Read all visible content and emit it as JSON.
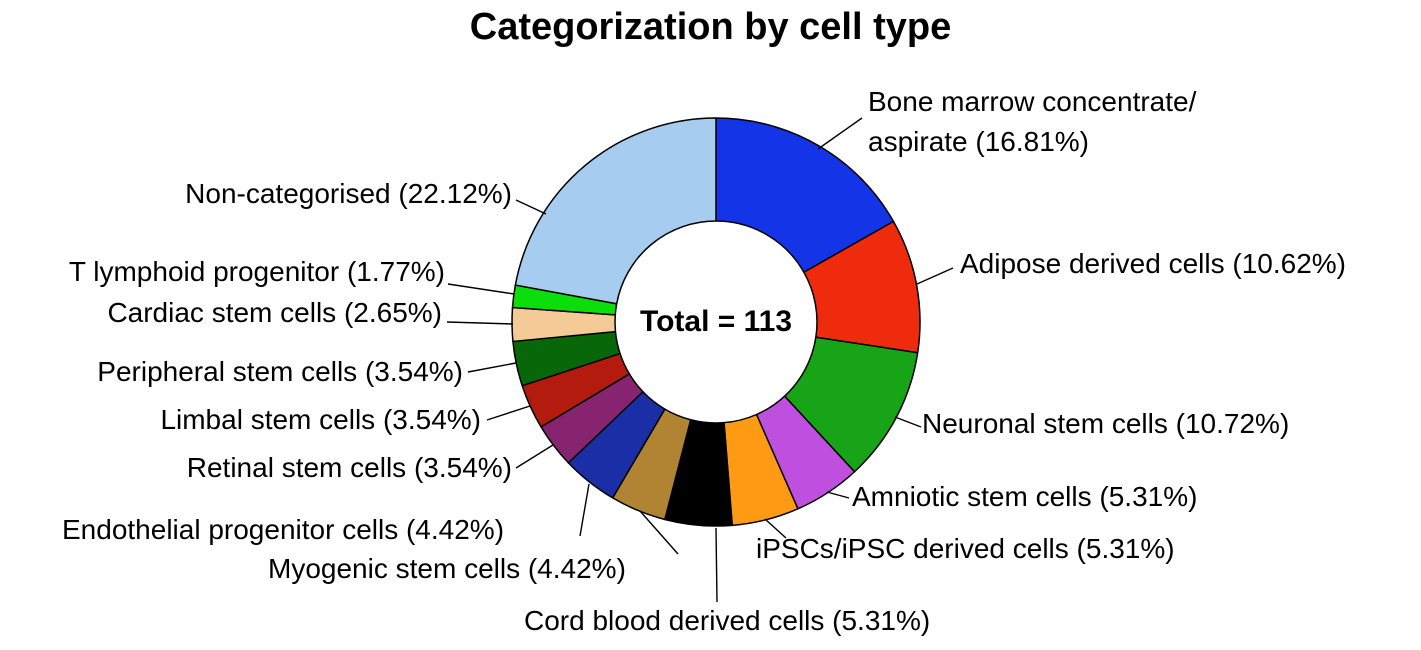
{
  "chart_data": {
    "type": "pie",
    "subtype": "donut",
    "title": "Categorization by cell type",
    "center_label": "Total = 113",
    "total": 113,
    "direction": "clockwise",
    "start_angle": "12-oclock",
    "legend_position": "callout-labels-with-leader-lines",
    "slices": [
      {
        "id": "bone-marrow-concentrate-aspirate",
        "label": "Bone marrow concentrate/aspirate",
        "pct": 16.81,
        "color": "#1434E8",
        "callout": "Bone marrow concentrate/\naspirate (16.81%)"
      },
      {
        "id": "adipose-derived-cells",
        "label": "Adipose derived cells",
        "pct": 10.62,
        "color": "#EE2B0C",
        "callout": "Adipose derived cells (10.62%)"
      },
      {
        "id": "neuronal-stem-cells",
        "label": "Neuronal stem cells",
        "pct": 10.72,
        "color": "#17A517",
        "callout": "Neuronal stem cells (10.72%)"
      },
      {
        "id": "amniotic-stem-cells",
        "label": "Amniotic stem cells",
        "pct": 5.31,
        "color": "#BF4FDF",
        "callout": "Amniotic stem cells (5.31%)"
      },
      {
        "id": "ipscs-ipsc-derived-cells",
        "label": "iPSCs/iPSC derived cells",
        "pct": 5.31,
        "color": "#FF9A15",
        "callout": "iPSCs/iPSC derived cells (5.31%)"
      },
      {
        "id": "cord-blood-derived-cells",
        "label": "Cord blood derived cells",
        "pct": 5.31,
        "color": "#000000",
        "callout": "Cord blood derived cells (5.31%)"
      },
      {
        "id": "myogenic-stem-cells",
        "label": "Myogenic stem cells",
        "pct": 4.42,
        "color": "#B08433",
        "callout": "Myogenic stem cells (4.42%)"
      },
      {
        "id": "endothelial-progenitor-cells",
        "label": "Endothelial progenitor cells",
        "pct": 4.42,
        "color": "#1A2FA6",
        "callout": "Endothelial progenitor cells (4.42%)"
      },
      {
        "id": "retinal-stem-cells",
        "label": "Retinal stem cells",
        "pct": 3.54,
        "color": "#87246F",
        "callout": "Retinal stem cells (3.54%)"
      },
      {
        "id": "limbal-stem-cells",
        "label": "Limbal stem cells",
        "pct": 3.54,
        "color": "#B21B0E",
        "callout": "Limbal stem cells (3.54%)"
      },
      {
        "id": "peripheral-stem-cells",
        "label": "Peripheral stem cells",
        "pct": 3.54,
        "color": "#086708",
        "callout": "Peripheral stem cells (3.54%)"
      },
      {
        "id": "cardiac-stem-cells",
        "label": "Cardiac stem cells",
        "pct": 2.65,
        "color": "#F4CA96",
        "callout": "Cardiac stem cells (2.65%)"
      },
      {
        "id": "t-lymphoid-progenitor",
        "label": "T lymphoid progenitor",
        "pct": 1.77,
        "color": "#0BDE0B",
        "callout": "T lymphoid progenitor (1.77%)"
      },
      {
        "id": "non-categorised",
        "label": "Non-categorised",
        "pct": 22.12,
        "color": "#A6CCF0",
        "callout": "Non-categorised (22.12%)"
      }
    ]
  }
}
